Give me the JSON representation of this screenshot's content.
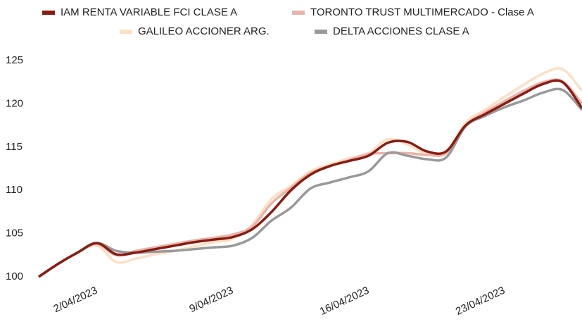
{
  "chart_data": {
    "type": "line",
    "x": [
      "2023-03-30",
      "2023-03-31",
      "2023-04-01",
      "2023-04-02",
      "2023-04-03",
      "2023-04-04",
      "2023-04-05",
      "2023-04-06",
      "2023-04-07",
      "2023-04-08",
      "2023-04-09",
      "2023-04-10",
      "2023-04-11",
      "2023-04-12",
      "2023-04-13",
      "2023-04-14",
      "2023-04-15",
      "2023-04-16",
      "2023-04-17",
      "2023-04-18",
      "2023-04-19",
      "2023-04-20",
      "2023-04-21",
      "2023-04-22",
      "2023-04-23",
      "2023-04-24",
      "2023-04-25",
      "2023-04-26",
      "2023-04-27"
    ],
    "xlim": [
      "2023-03-30",
      "2023-04-27"
    ],
    "xticks": [
      {
        "value": "2023-04-02",
        "label": "2/04/2023"
      },
      {
        "value": "2023-04-09",
        "label": "9/04/2023"
      },
      {
        "value": "2023-04-16",
        "label": "16/04/2023"
      },
      {
        "value": "2023-04-23",
        "label": "23/04/2023"
      }
    ],
    "ylim": [
      100,
      125
    ],
    "yticks": [
      100,
      105,
      110,
      115,
      120,
      125
    ],
    "grid": false,
    "series": [
      {
        "name": "IAM RENTA VARIABLE FCI CLASE A",
        "color": "#8b1a10",
        "values": [
          100,
          101.5,
          102.8,
          103.9,
          102.6,
          102.8,
          103.2,
          103.6,
          104.0,
          104.3,
          104.6,
          105.5,
          107.5,
          110.0,
          111.8,
          112.8,
          113.4,
          114.0,
          115.5,
          115.6,
          114.5,
          114.5,
          117.5,
          118.8,
          120.0,
          121.2,
          122.3,
          122.5,
          119.5
        ]
      },
      {
        "name": "TORONTO TRUST MULTIMERCADO - Clase A",
        "color": "#e8b4aa",
        "values": [
          100,
          101.5,
          102.8,
          103.8,
          102.5,
          103.0,
          103.4,
          103.8,
          104.2,
          104.5,
          104.9,
          105.8,
          108.5,
          110.3,
          112.0,
          112.8,
          113.5,
          114.2,
          114.3,
          114.3,
          114.1,
          114.3,
          117.5,
          119.0,
          120.3,
          121.5,
          122.5,
          122.6,
          120.0
        ]
      },
      {
        "name": "GALILEO ACCIONER ARG.",
        "color": "#fde0c5",
        "values": [
          100,
          101.5,
          102.8,
          103.6,
          101.7,
          102.1,
          102.6,
          103.0,
          103.5,
          104.0,
          104.4,
          106.0,
          109.0,
          110.5,
          112.2,
          113.0,
          113.7,
          114.3,
          115.9,
          115.3,
          114.2,
          114.5,
          117.8,
          119.3,
          120.8,
          122.2,
          123.5,
          124.0,
          121.5
        ]
      },
      {
        "name": "DELTA ACCIONES CLASE A",
        "color": "#999999",
        "values": [
          100,
          101.5,
          102.8,
          103.9,
          103.0,
          102.8,
          102.9,
          103.0,
          103.2,
          103.4,
          103.6,
          104.5,
          106.5,
          108.0,
          110.2,
          110.9,
          111.5,
          112.2,
          114.3,
          114.0,
          113.6,
          113.8,
          117.4,
          118.6,
          119.6,
          120.4,
          121.3,
          121.6,
          119.3
        ]
      }
    ]
  }
}
